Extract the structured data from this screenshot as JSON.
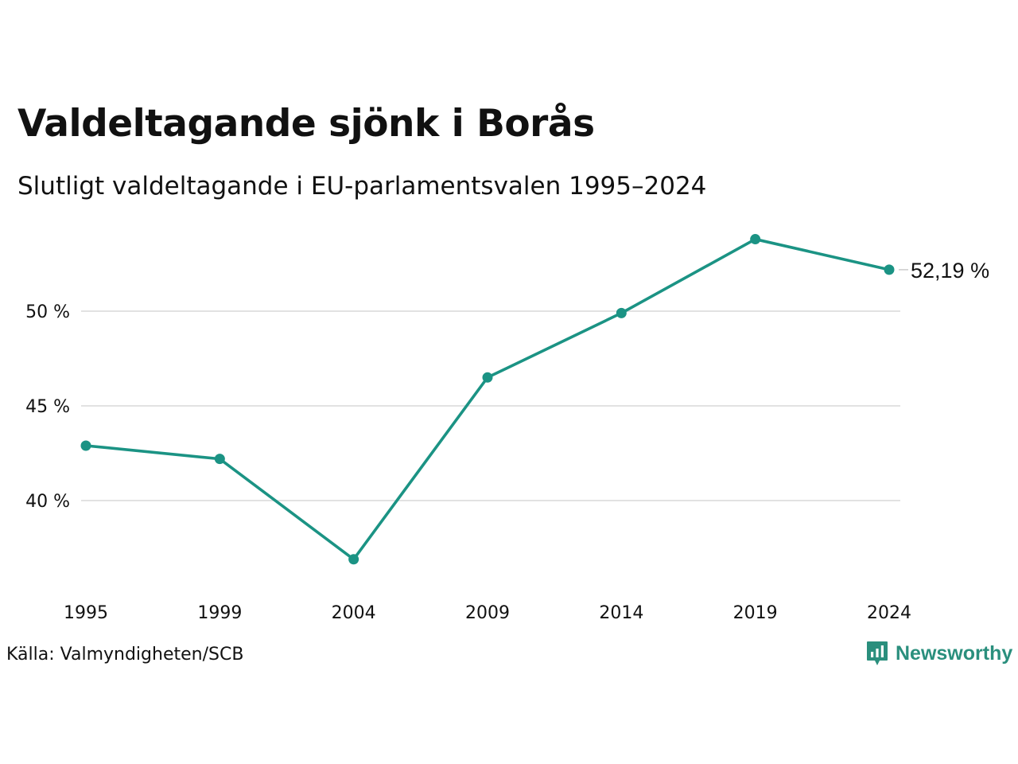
{
  "title": "Valdeltagande sjönk i Borås",
  "subtitle": "Slutligt valdeltagande i EU-parlamentsvalen 1995–2024",
  "source": "Källa: Valmyndigheten/SCB",
  "brand": "Newsworthy",
  "colors": {
    "line": "#1b9384",
    "grid": "#e2e2e2",
    "text": "#111111",
    "brand": "#2a8f7d"
  },
  "chart_data": {
    "type": "line",
    "title": "Valdeltagande sjönk i Borås",
    "subtitle": "Slutligt valdeltagande i EU-parlamentsvalen 1995–2024",
    "xlabel": "",
    "ylabel": "",
    "x": [
      "1995",
      "1999",
      "2004",
      "2009",
      "2014",
      "2019",
      "2024"
    ],
    "series": [
      {
        "values": [
          42.9,
          42.2,
          36.9,
          46.5,
          49.9,
          53.8,
          52.19
        ]
      }
    ],
    "ylim": [
      35,
      55
    ],
    "yticks": [
      40,
      45,
      50
    ],
    "ytick_labels": [
      "40 %",
      "45 %",
      "50 %"
    ],
    "grid": true,
    "end_label": "52,19 %"
  }
}
